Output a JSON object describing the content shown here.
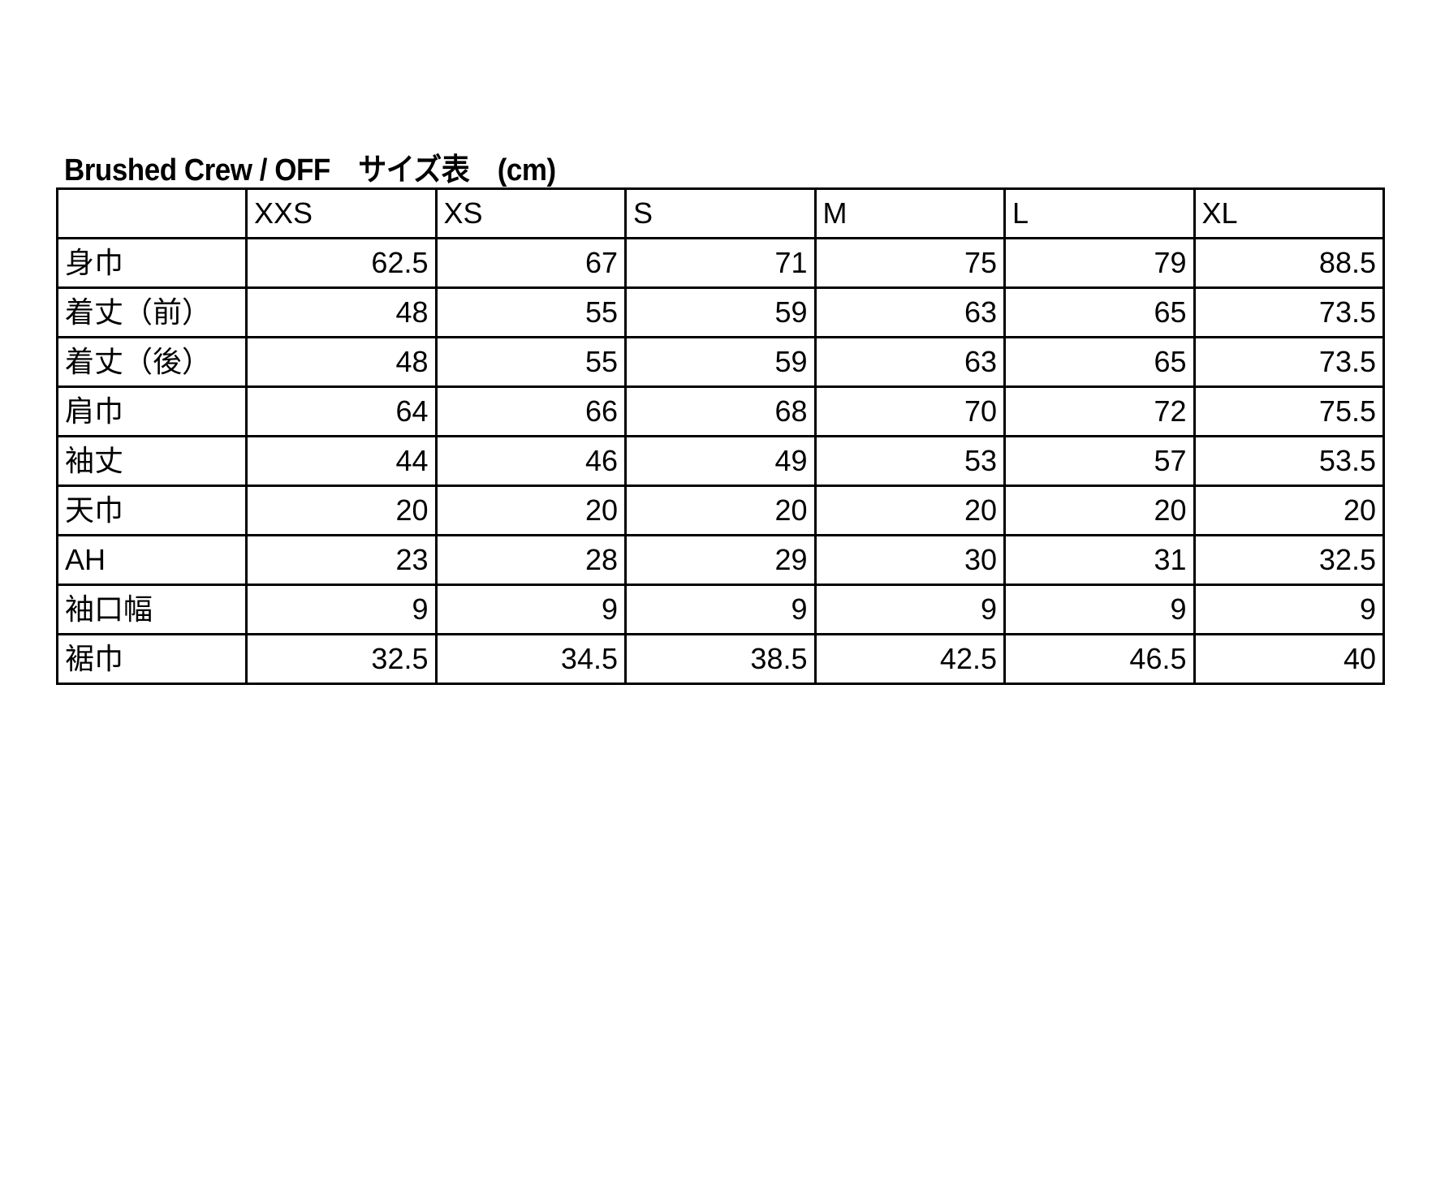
{
  "title": "Brushed Crew / OFF　サイズ表　(cm)",
  "columns": [
    "",
    "XXS",
    "XS",
    "S",
    "M",
    "L",
    "XL"
  ],
  "rows": [
    {
      "label": "身巾",
      "values": [
        "62.5",
        "67",
        "71",
        "75",
        "79",
        "88.5"
      ]
    },
    {
      "label": "着丈（前）",
      "values": [
        "48",
        "55",
        "59",
        "63",
        "65",
        "73.5"
      ]
    },
    {
      "label": "着丈（後）",
      "values": [
        "48",
        "55",
        "59",
        "63",
        "65",
        "73.5"
      ]
    },
    {
      "label": "肩巾",
      "values": [
        "64",
        "66",
        "68",
        "70",
        "72",
        "75.5"
      ]
    },
    {
      "label": "袖丈",
      "values": [
        "44",
        "46",
        "49",
        "53",
        "57",
        "53.5"
      ]
    },
    {
      "label": "天巾",
      "values": [
        "20",
        "20",
        "20",
        "20",
        "20",
        "20"
      ]
    },
    {
      "label": "AH",
      "values": [
        "23",
        "28",
        "29",
        "30",
        "31",
        "32.5"
      ]
    },
    {
      "label": "袖口幅",
      "values": [
        "9",
        "9",
        "9",
        "9",
        "9",
        "9"
      ]
    },
    {
      "label": "裾巾",
      "values": [
        "32.5",
        "34.5",
        "38.5",
        "42.5",
        "46.5",
        "40"
      ]
    }
  ]
}
